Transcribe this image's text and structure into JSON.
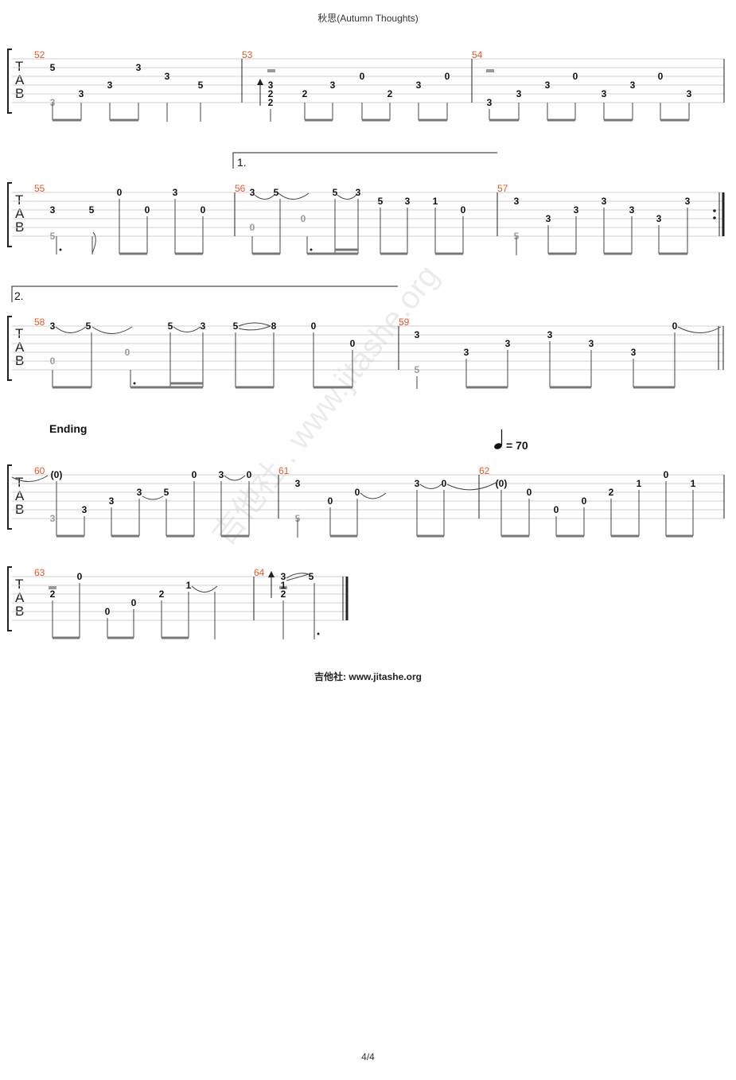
{
  "title": "秋思(Autumn Thoughts)",
  "footer": "吉他社: www.jitashe.org",
  "page_number": "4/4",
  "watermark": "吉他社 . www.jitashe.org",
  "ending_label": "Ending",
  "tempo": {
    "text": "= 70",
    "bpm": 70
  },
  "tab_letters": [
    "T",
    "A",
    "B"
  ],
  "volta_1": "1.",
  "volta_2": "2.",
  "measure_numbers": [
    "52",
    "53",
    "54",
    "55",
    "56",
    "57",
    "58",
    "59",
    "60",
    "61",
    "62",
    "63",
    "64"
  ],
  "accent_color": "#e3592a"
}
